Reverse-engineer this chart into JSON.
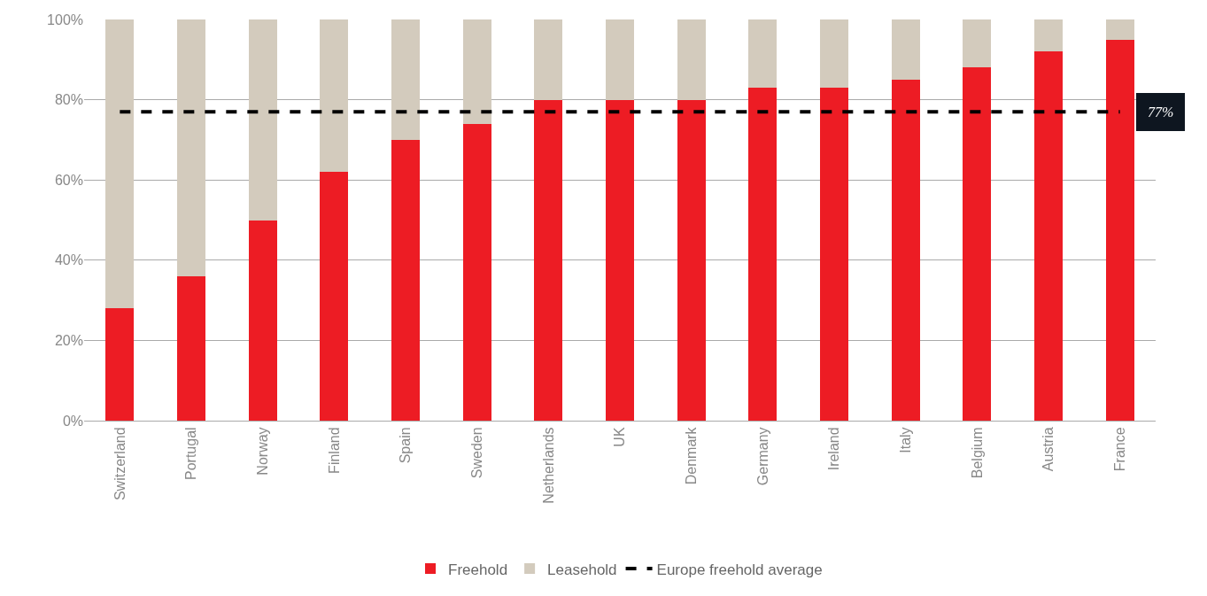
{
  "chart_data": {
    "type": "bar",
    "stacked": true,
    "categories": [
      "Switzerland",
      "Portugal",
      "Norway",
      "Finland",
      "Spain",
      "Sweden",
      "Netherlands",
      "UK",
      "Denmark",
      "Germany",
      "Ireland",
      "Italy",
      "Belgium",
      "Austria",
      "France"
    ],
    "series": [
      {
        "name": "Freehold",
        "color": "#ed1c24",
        "values": [
          28,
          36,
          50,
          62,
          70,
          74,
          80,
          80,
          80,
          83,
          83,
          85,
          88,
          92,
          95
        ]
      },
      {
        "name": "Leasehold",
        "color": "#d3cbbd",
        "values": [
          72,
          64,
          50,
          38,
          30,
          26,
          20,
          20,
          20,
          17,
          17,
          15,
          12,
          8,
          5
        ]
      }
    ],
    "ref_lines": [
      {
        "axis": "y",
        "value": 77,
        "label": "Europe freehold average",
        "color": "#000000",
        "line_style": "dashed"
      }
    ],
    "annotations": [
      {
        "text": "77%",
        "x": "France",
        "y": 77
      }
    ],
    "ylim": [
      0,
      100
    ],
    "yticks": [
      {
        "value": 0,
        "label": "0%"
      },
      {
        "value": 20,
        "label": "20%"
      },
      {
        "value": 40,
        "label": "40%"
      },
      {
        "value": 60,
        "label": "60%"
      },
      {
        "value": 80,
        "label": "80%"
      },
      {
        "value": 100,
        "label": "100%"
      }
    ],
    "grid": "y",
    "legend": "bottom"
  }
}
